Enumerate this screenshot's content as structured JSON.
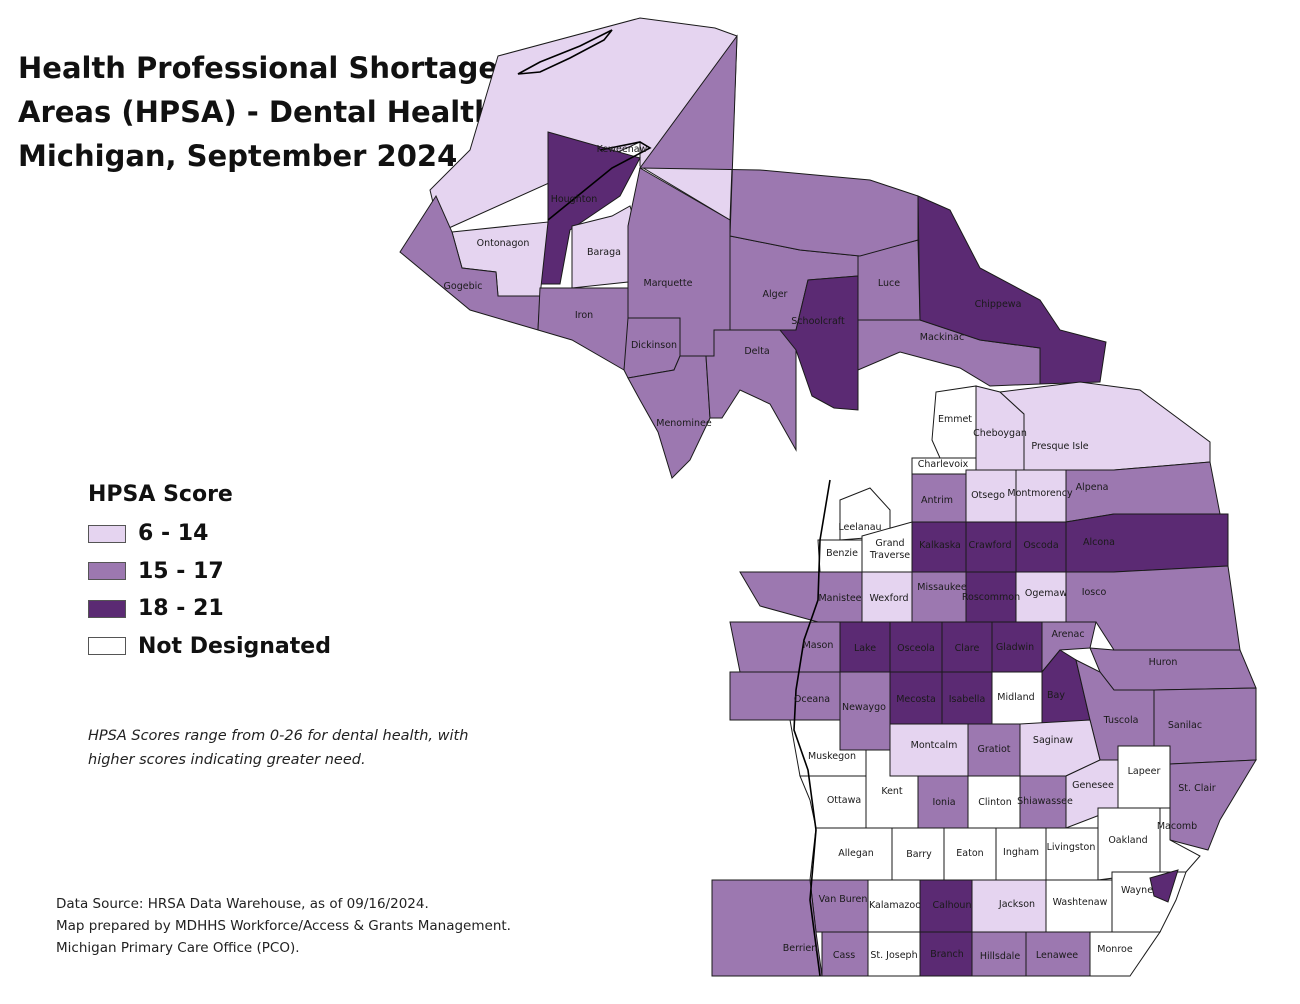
{
  "title": {
    "line1": "Health Professional Shortage",
    "line2": "Areas (HPSA) - Dental Health",
    "line3": "Michigan, September 2024"
  },
  "legend": {
    "title": "HPSA Score",
    "items": [
      {
        "label": "6 - 14",
        "color": "#e5d4f0"
      },
      {
        "label": "15 - 17",
        "color": "#9c78b0"
      },
      {
        "label": "18 - 21",
        "color": "#5b2a73"
      },
      {
        "label": "Not Designated",
        "color": "#ffffff"
      }
    ]
  },
  "note": {
    "line1": "HPSA Scores range from 0-26 for dental health, with",
    "line2": "higher scores indicating greater need."
  },
  "source": {
    "line1": "Data Source: HRSA Data Warehouse, as of 09/16/2024.",
    "line2": "Map prepared by MDHHS Workforce/Access & Grants Management.",
    "line3": "Michigan Primary Care Office (PCO)."
  },
  "counties": [
    {
      "name": "Keweenaw",
      "cls": "low"
    },
    {
      "name": "Houghton",
      "cls": "high"
    },
    {
      "name": "Ontonagon",
      "cls": "low"
    },
    {
      "name": "Baraga",
      "cls": "low"
    },
    {
      "name": "Gogebic",
      "cls": "mid"
    },
    {
      "name": "Iron",
      "cls": "mid"
    },
    {
      "name": "Marquette",
      "cls": "mid"
    },
    {
      "name": "Dickinson",
      "cls": "mid"
    },
    {
      "name": "Menominee",
      "cls": "mid"
    },
    {
      "name": "Delta",
      "cls": "mid"
    },
    {
      "name": "Alger",
      "cls": "mid"
    },
    {
      "name": "Schoolcraft",
      "cls": "high"
    },
    {
      "name": "Luce",
      "cls": "mid"
    },
    {
      "name": "Mackinac",
      "cls": "mid"
    },
    {
      "name": "Chippewa",
      "cls": "high"
    },
    {
      "name": "Emmet",
      "cls": "none"
    },
    {
      "name": "Cheboygan",
      "cls": "low"
    },
    {
      "name": "Presque Isle",
      "cls": "low"
    },
    {
      "name": "Charlevoix",
      "cls": "none"
    },
    {
      "name": "Antrim",
      "cls": "mid"
    },
    {
      "name": "Otsego",
      "cls": "low"
    },
    {
      "name": "Montmorency",
      "cls": "low"
    },
    {
      "name": "Alpena",
      "cls": "mid"
    },
    {
      "name": "Leelanau",
      "cls": "none"
    },
    {
      "name": "Benzie",
      "cls": "none"
    },
    {
      "name": "Grand Traverse",
      "cls": "none"
    },
    {
      "name": "Kalkaska",
      "cls": "high"
    },
    {
      "name": "Crawford",
      "cls": "high"
    },
    {
      "name": "Oscoda",
      "cls": "high"
    },
    {
      "name": "Alcona",
      "cls": "high"
    },
    {
      "name": "Manistee",
      "cls": "mid"
    },
    {
      "name": "Wexford",
      "cls": "low"
    },
    {
      "name": "Missaukee",
      "cls": "mid"
    },
    {
      "name": "Roscommon",
      "cls": "high"
    },
    {
      "name": "Ogemaw",
      "cls": "low"
    },
    {
      "name": "Iosco",
      "cls": "mid"
    },
    {
      "name": "Mason",
      "cls": "mid"
    },
    {
      "name": "Lake",
      "cls": "high"
    },
    {
      "name": "Osceola",
      "cls": "high"
    },
    {
      "name": "Clare",
      "cls": "high"
    },
    {
      "name": "Gladwin",
      "cls": "high"
    },
    {
      "name": "Arenac",
      "cls": "mid"
    },
    {
      "name": "Huron",
      "cls": "mid"
    },
    {
      "name": "Oceana",
      "cls": "mid"
    },
    {
      "name": "Newaygo",
      "cls": "mid"
    },
    {
      "name": "Mecosta",
      "cls": "high"
    },
    {
      "name": "Isabella",
      "cls": "high"
    },
    {
      "name": "Midland",
      "cls": "none"
    },
    {
      "name": "Bay",
      "cls": "high"
    },
    {
      "name": "Tuscola",
      "cls": "mid"
    },
    {
      "name": "Sanilac",
      "cls": "mid"
    },
    {
      "name": "Muskegon",
      "cls": "none"
    },
    {
      "name": "Montcalm",
      "cls": "low"
    },
    {
      "name": "Gratiot",
      "cls": "mid"
    },
    {
      "name": "Saginaw",
      "cls": "low"
    },
    {
      "name": "Ottawa",
      "cls": "none"
    },
    {
      "name": "Kent",
      "cls": "none"
    },
    {
      "name": "Ionia",
      "cls": "mid"
    },
    {
      "name": "Clinton",
      "cls": "none"
    },
    {
      "name": "Shiawassee",
      "cls": "mid"
    },
    {
      "name": "Genesee",
      "cls": "low"
    },
    {
      "name": "Lapeer",
      "cls": "none"
    },
    {
      "name": "St. Clair",
      "cls": "mid"
    },
    {
      "name": "Allegan",
      "cls": "none"
    },
    {
      "name": "Barry",
      "cls": "none"
    },
    {
      "name": "Eaton",
      "cls": "none"
    },
    {
      "name": "Ingham",
      "cls": "none"
    },
    {
      "name": "Livingston",
      "cls": "none"
    },
    {
      "name": "Oakland",
      "cls": "none"
    },
    {
      "name": "Macomb",
      "cls": "none"
    },
    {
      "name": "Van Buren",
      "cls": "mid"
    },
    {
      "name": "Kalamazoo",
      "cls": "none"
    },
    {
      "name": "Calhoun",
      "cls": "high"
    },
    {
      "name": "Jackson",
      "cls": "low"
    },
    {
      "name": "Washtenaw",
      "cls": "none"
    },
    {
      "name": "Wayne",
      "cls": "none"
    },
    {
      "name": "Berrien",
      "cls": "mid"
    },
    {
      "name": "Cass",
      "cls": "mid"
    },
    {
      "name": "St. Joseph",
      "cls": "none"
    },
    {
      "name": "Branch",
      "cls": "high"
    },
    {
      "name": "Hillsdale",
      "cls": "mid"
    },
    {
      "name": "Lenawee",
      "cls": "mid"
    },
    {
      "name": "Monroe",
      "cls": "none"
    }
  ]
}
